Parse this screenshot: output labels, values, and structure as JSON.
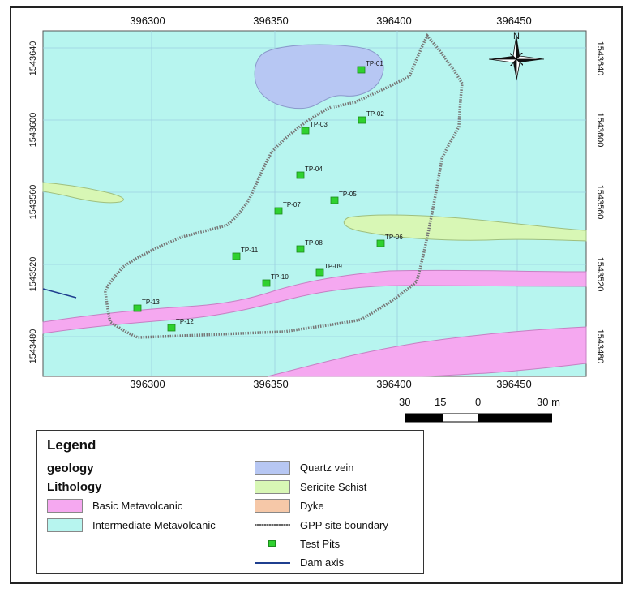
{
  "map": {
    "x_ticks": [
      "396300",
      "396350",
      "396400",
      "396450"
    ],
    "y_ticks": [
      "1543640",
      "1543600",
      "1543560",
      "1543520",
      "1543480"
    ],
    "north_label": "N",
    "test_pits": [
      {
        "label": "TP-01"
      },
      {
        "label": "TP-02"
      },
      {
        "label": "TP-03"
      },
      {
        "label": "TP-04"
      },
      {
        "label": "TP-05"
      },
      {
        "label": "TP-06"
      },
      {
        "label": "TP-07"
      },
      {
        "label": "TP-08"
      },
      {
        "label": "TP-09"
      },
      {
        "label": "TP-10"
      },
      {
        "label": "TP-11"
      },
      {
        "label": "TP-12"
      },
      {
        "label": "TP-13"
      }
    ],
    "colors": {
      "intermediate_metavolcanic": "#b7f5ef",
      "basic_metavolcanic": "#f5a8f0",
      "quartz_vein": "#b7c7f3",
      "sericite_schist": "#d8f7b5",
      "dyke": "#f6c8a8",
      "boundary": "#777777",
      "test_pit": "#2fd12f",
      "dam_axis": "#1f3f8f"
    }
  },
  "scale_bar": {
    "labels": [
      "30",
      "15",
      "0",
      "30 m"
    ]
  },
  "legend": {
    "title": "Legend",
    "group": "geology",
    "subgroup": "Lithology",
    "items": [
      {
        "label": "Basic Metavolcanic"
      },
      {
        "label": "Intermediate Metavolcanic"
      },
      {
        "label": "Quartz vein"
      },
      {
        "label": "Sericite Schist"
      },
      {
        "label": "Dyke"
      },
      {
        "label": "GPP site boundary"
      },
      {
        "label": "Test Pits"
      },
      {
        "label": "Dam axis"
      }
    ]
  }
}
